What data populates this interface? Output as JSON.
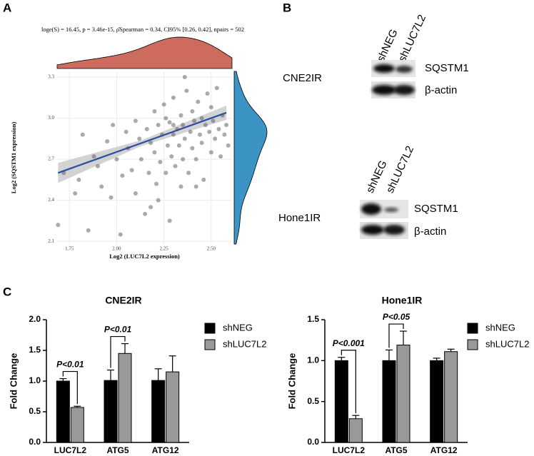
{
  "panel_labels": [
    "A",
    "B",
    "C"
  ],
  "blots": [
    {
      "cell_line": "CNE2IR",
      "lanes": [
        "shNEG",
        "shLUC7L2"
      ],
      "proteins": [
        "SQSTM1",
        "β-actin"
      ]
    },
    {
      "cell_line": "Hone1IR",
      "lanes": [
        "shNEG",
        "shLUC7L2"
      ],
      "proteins": [
        "SQSTM1",
        "β-actin"
      ]
    }
  ],
  "chart_data": [
    {
      "type": "scatter",
      "subtitle": "loge(S) = 16.45, p = 3.46e-15, ρ̂Spearman = 0.34, CI95% [0.26, 0.42], npairs = 502",
      "x_label": "Log2 (LUC7L2 expression)",
      "y_label": "Log2 (SQSTM1 expression)",
      "x": [
        1.69,
        1.72,
        1.78,
        1.8,
        1.82,
        1.85,
        1.88,
        1.9,
        1.92,
        1.95,
        1.97,
        1.98,
        2.0,
        2.02,
        2.03,
        2.05,
        2.06,
        2.08,
        2.1,
        2.1,
        2.12,
        2.13,
        2.15,
        2.16,
        2.17,
        2.18,
        2.2,
        2.2,
        2.21,
        2.22,
        2.23,
        2.24,
        2.25,
        2.26,
        2.27,
        2.28,
        2.29,
        2.3,
        2.3,
        2.31,
        2.32,
        2.33,
        2.34,
        2.35,
        2.35,
        2.36,
        2.37,
        2.38,
        2.39,
        2.4,
        2.4,
        2.41,
        2.42,
        2.43,
        2.44,
        2.45,
        2.45,
        2.46,
        2.47,
        2.48,
        2.49,
        2.5,
        2.5,
        2.51,
        2.52,
        2.53,
        2.54,
        2.55,
        2.56,
        2.57,
        2.58,
        2.59,
        2.22,
        2.28,
        2.34,
        2.42,
        2.36,
        2.18,
        2.3,
        2.26
      ],
      "y": [
        2.22,
        2.6,
        2.45,
        2.55,
        2.88,
        2.18,
        2.72,
        2.65,
        2.5,
        2.83,
        2.42,
        2.95,
        2.7,
        2.15,
        2.58,
        2.9,
        2.78,
        2.62,
        2.98,
        2.45,
        2.85,
        2.7,
        2.3,
        2.92,
        2.6,
        2.82,
        3.05,
        2.75,
        2.52,
        2.95,
        2.68,
        2.88,
        3.1,
        2.6,
        2.8,
        2.97,
        2.72,
        2.88,
        3.15,
        2.65,
        2.92,
        2.8,
        3.02,
        2.7,
        2.95,
        2.85,
        3.2,
        2.6,
        2.9,
        3.05,
        2.78,
        2.98,
        2.7,
        3.12,
        2.88,
        2.82,
        3.0,
        2.55,
        2.95,
        3.18,
        2.9,
        2.75,
        3.08,
        2.98,
        2.85,
        3.22,
        2.92,
        2.72,
        3.02,
        2.88,
        2.95,
        2.8,
        2.4,
        2.25,
        2.5,
        2.5,
        3.3,
        2.35,
        2.95,
        3.0
      ],
      "color": "#555555",
      "fit": {
        "x": [
          1.69,
          2.58
        ],
        "y": [
          2.6,
          3.04
        ],
        "color": "#2b4da6"
      },
      "x_density_color": "#cd6b5f",
      "y_density_color": "#3b94c3",
      "xlim": [
        1.685,
        2.61
      ],
      "ylim": [
        2.08,
        3.342
      ],
      "xticks": [
        1.75,
        {
          "value": 2,
          "label": "2.00"
        },
        2.25,
        {
          "value": 2.5,
          "label": "2.50"
        }
      ],
      "yticks": [
        2.1,
        2.4,
        2.7,
        {
          "value": 3,
          "label": "3.0"
        },
        3.3
      ],
      "grid": true
    },
    {
      "type": "bar",
      "title": "CNE2IR",
      "y_label": "Fold Change",
      "categories": [
        "LUC7L2",
        "ATG5",
        "ATG12"
      ],
      "series": [
        {
          "name": "shNEG",
          "color": "#000000",
          "values": [
            1.0,
            1.01,
            1.01
          ],
          "errors": [
            0.04,
            0.17,
            0.19
          ]
        },
        {
          "name": "shLUC7L2",
          "color": "#999999",
          "values": [
            0.57,
            1.45,
            1.15
          ],
          "errors": [
            0.02,
            0.16,
            0.26
          ]
        }
      ],
      "annotations": [
        "P<0.01",
        "P<0.01"
      ],
      "ylim": [
        0,
        2
      ],
      "yticks": [
        {
          "value": 0,
          "label": "0.0"
        },
        0.5,
        {
          "value": 1,
          "label": "1.0"
        },
        1.5,
        {
          "value": 2,
          "label": "2.0"
        }
      ],
      "legend": "right"
    },
    {
      "type": "bar",
      "title": "Hone1IR",
      "y_label": "Fold Change",
      "categories": [
        "LUC7L2",
        "ATG5",
        "ATG12"
      ],
      "series": [
        {
          "name": "shNEG",
          "color": "#000000",
          "values": [
            1.0,
            1.0,
            1.0
          ],
          "errors": [
            0.04,
            0.13,
            0.03
          ]
        },
        {
          "name": "shLUC7L2",
          "color": "#999999",
          "values": [
            0.29,
            1.19,
            1.11
          ],
          "errors": [
            0.04,
            0.17,
            0.03
          ]
        }
      ],
      "annotations": [
        "P<0.001",
        "P<0.05"
      ],
      "ylim": [
        0,
        1.5
      ],
      "yticks": [
        {
          "value": 0,
          "label": "0.0"
        },
        0.5,
        {
          "value": 1,
          "label": "1.0"
        },
        1.5
      ],
      "legend": "right"
    }
  ]
}
